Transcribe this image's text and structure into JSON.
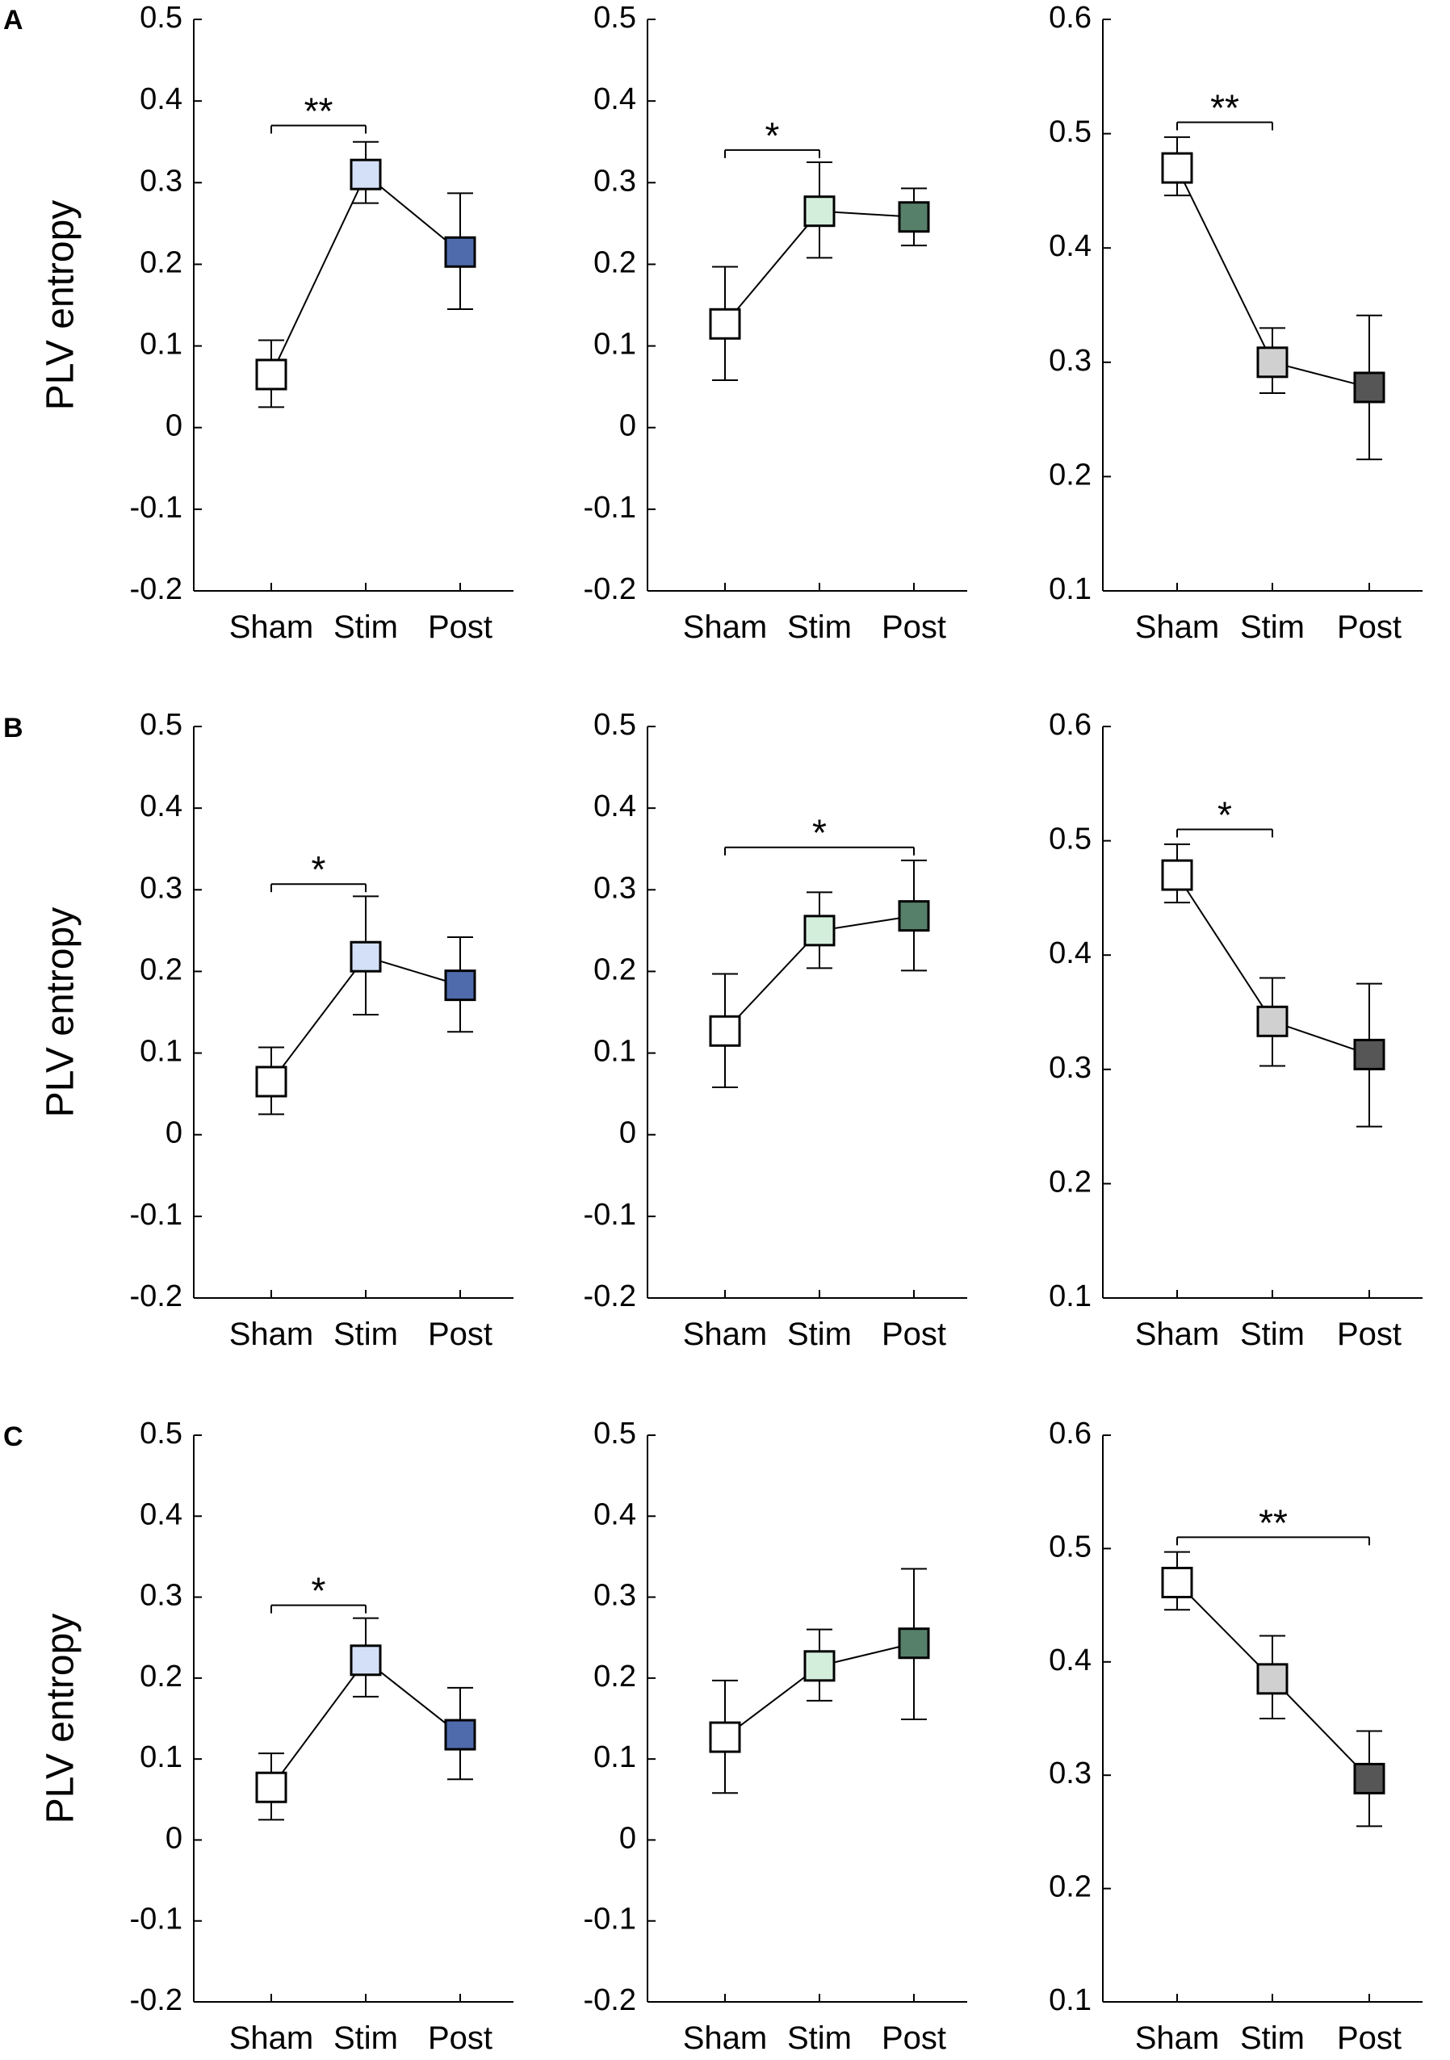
{
  "figure": {
    "rows": [
      {
        "label": "A",
        "ylabel": "PLV entropy",
        "charts": [
          {
            "type": "scatter",
            "categories": [
              "Sham",
              "Stim",
              "Post"
            ],
            "values": [
              0.065,
              0.31,
              0.215
            ],
            "err_lo": [
              0.025,
              0.275,
              0.145
            ],
            "err_hi": [
              0.107,
              0.35,
              0.287
            ],
            "colors": [
              "#ffffff",
              "#d3e0f7",
              "#4f6bab"
            ],
            "ylim": [
              -0.2,
              0.5
            ],
            "ticks": [
              "-0.2",
              "-0.1",
              "0",
              "0.1",
              "0.2",
              "0.3",
              "0.4",
              "0.5"
            ],
            "sig": [
              {
                "from": 0,
                "to": 1,
                "label": "**",
                "y": 0.37
              }
            ]
          },
          {
            "type": "scatter",
            "categories": [
              "Sham",
              "Stim",
              "Post"
            ],
            "values": [
              0.127,
              0.265,
              0.258
            ],
            "err_lo": [
              0.058,
              0.208,
              0.223
            ],
            "err_hi": [
              0.197,
              0.325,
              0.293
            ],
            "colors": [
              "#ffffff",
              "#d4eedc",
              "#57806a"
            ],
            "ylim": [
              -0.2,
              0.5
            ],
            "ticks": [
              "-0.2",
              "-0.1",
              "0",
              "0.1",
              "0.2",
              "0.3",
              "0.4",
              "0.5"
            ],
            "sig": [
              {
                "from": 0,
                "to": 1,
                "label": "*",
                "y": 0.34
              }
            ]
          },
          {
            "type": "scatter",
            "categories": [
              "Sham",
              "Stim",
              "Post"
            ],
            "values": [
              0.47,
              0.3,
              0.278
            ],
            "err_lo": [
              0.446,
              0.273,
              0.215
            ],
            "err_hi": [
              0.497,
              0.33,
              0.341
            ],
            "colors": [
              "#ffffff",
              "#d0d0d0",
              "#565656"
            ],
            "ylim": [
              0.1,
              0.6
            ],
            "ticks": [
              "0.1",
              "0.2",
              "0.3",
              "0.4",
              "0.5",
              "0.6"
            ],
            "sig": [
              {
                "from": 0,
                "to": 1,
                "label": "**",
                "y": 0.51
              }
            ]
          }
        ]
      },
      {
        "label": "B",
        "ylabel": "PLV entropy",
        "charts": [
          {
            "type": "scatter",
            "categories": [
              "Sham",
              "Stim",
              "Post"
            ],
            "values": [
              0.065,
              0.218,
              0.183
            ],
            "err_lo": [
              0.025,
              0.147,
              0.126
            ],
            "err_hi": [
              0.107,
              0.292,
              0.242
            ],
            "colors": [
              "#ffffff",
              "#d3e0f7",
              "#4f6bab"
            ],
            "ylim": [
              -0.2,
              0.5
            ],
            "ticks": [
              "-0.2",
              "-0.1",
              "0",
              "0.1",
              "0.2",
              "0.3",
              "0.4",
              "0.5"
            ],
            "sig": [
              {
                "from": 0,
                "to": 1,
                "label": "*",
                "y": 0.307
              }
            ]
          },
          {
            "type": "scatter",
            "categories": [
              "Sham",
              "Stim",
              "Post"
            ],
            "values": [
              0.127,
              0.25,
              0.268
            ],
            "err_lo": [
              0.058,
              0.204,
              0.201
            ],
            "err_hi": [
              0.197,
              0.297,
              0.336
            ],
            "colors": [
              "#ffffff",
              "#d4eedc",
              "#57806a"
            ],
            "ylim": [
              -0.2,
              0.5
            ],
            "ticks": [
              "-0.2",
              "-0.1",
              "0",
              "0.1",
              "0.2",
              "0.3",
              "0.4",
              "0.5"
            ],
            "sig": [
              {
                "from": 0,
                "to": 2,
                "label": "*",
                "y": 0.352
              }
            ]
          },
          {
            "type": "scatter",
            "categories": [
              "Sham",
              "Stim",
              "Post"
            ],
            "values": [
              0.47,
              0.342,
              0.313
            ],
            "err_lo": [
              0.446,
              0.303,
              0.25
            ],
            "err_hi": [
              0.497,
              0.38,
              0.375
            ],
            "colors": [
              "#ffffff",
              "#d0d0d0",
              "#565656"
            ],
            "ylim": [
              0.1,
              0.6
            ],
            "ticks": [
              "0.1",
              "0.2",
              "0.3",
              "0.4",
              "0.5",
              "0.6"
            ],
            "sig": [
              {
                "from": 0,
                "to": 1,
                "label": "*",
                "y": 0.51
              }
            ]
          }
        ]
      },
      {
        "label": "C",
        "ylabel": "PLV entropy",
        "charts": [
          {
            "type": "scatter",
            "categories": [
              "Sham",
              "Stim",
              "Post"
            ],
            "values": [
              0.065,
              0.222,
              0.13
            ],
            "err_lo": [
              0.025,
              0.177,
              0.075
            ],
            "err_hi": [
              0.107,
              0.274,
              0.188
            ],
            "colors": [
              "#ffffff",
              "#d3e0f7",
              "#4f6bab"
            ],
            "ylim": [
              -0.2,
              0.5
            ],
            "ticks": [
              "-0.2",
              "-0.1",
              "0",
              "0.1",
              "0.2",
              "0.3",
              "0.4",
              "0.5"
            ],
            "sig": [
              {
                "from": 0,
                "to": 1,
                "label": "*",
                "y": 0.29
              }
            ]
          },
          {
            "type": "scatter",
            "categories": [
              "Sham",
              "Stim",
              "Post"
            ],
            "values": [
              0.127,
              0.215,
              0.243
            ],
            "err_lo": [
              0.058,
              0.172,
              0.149
            ],
            "err_hi": [
              0.197,
              0.26,
              0.335
            ],
            "colors": [
              "#ffffff",
              "#d4eedc",
              "#57806a"
            ],
            "ylim": [
              -0.2,
              0.5
            ],
            "ticks": [
              "-0.2",
              "-0.1",
              "0",
              "0.1",
              "0.2",
              "0.3",
              "0.4",
              "0.5"
            ],
            "sig": []
          },
          {
            "type": "scatter",
            "categories": [
              "Sham",
              "Stim",
              "Post"
            ],
            "values": [
              0.47,
              0.385,
              0.297
            ],
            "err_lo": [
              0.446,
              0.35,
              0.255
            ],
            "err_hi": [
              0.497,
              0.423,
              0.339
            ],
            "colors": [
              "#ffffff",
              "#d0d0d0",
              "#565656"
            ],
            "ylim": [
              0.1,
              0.6
            ],
            "ticks": [
              "0.1",
              "0.2",
              "0.3",
              "0.4",
              "0.5",
              "0.6"
            ],
            "sig": [
              {
                "from": 0,
                "to": 2,
                "label": "**",
                "y": 0.51
              }
            ]
          }
        ]
      }
    ]
  }
}
